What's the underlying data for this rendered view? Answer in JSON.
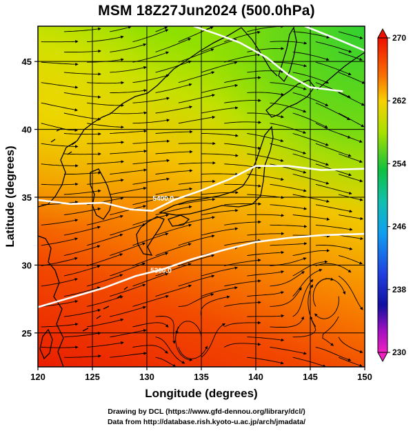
{
  "title": "MSM 18Z27Jun2024 (500.0hPa)",
  "credits": {
    "line1": "Drawing by DCL (https://www.gfd-dennou.org/library/dcl/)",
    "line2": "Data from http://database.rish.kyoto-u.ac.jp/arch/jmadata/"
  },
  "map": {
    "lon_range": [
      120,
      150
    ],
    "lat_range": [
      22.5,
      47.6
    ],
    "xlabel": "Longitude (degrees)",
    "ylabel": "Latitude  (degrees)",
    "x_ticks": [
      120,
      125,
      130,
      135,
      140,
      145,
      150
    ],
    "y_ticks": [
      25,
      30,
      35,
      40,
      45
    ],
    "x_tick_labels": [
      "120",
      "125",
      "130",
      "135",
      "140",
      "145",
      "150"
    ],
    "y_tick_labels": [
      "25",
      "30",
      "35",
      "40",
      "45"
    ],
    "grid": true
  },
  "colorbar": {
    "min": 230,
    "max": 270,
    "tick_labels": [
      "270",
      "262",
      "254",
      "246",
      "238",
      "230"
    ],
    "tick_values": [
      270,
      262,
      254,
      246,
      238,
      230
    ]
  },
  "contours": [
    {
      "label": "5400.0",
      "points": [
        [
          120,
          34.8
        ],
        [
          123,
          34.5
        ],
        [
          126,
          34.6
        ],
        [
          128.5,
          34.1
        ],
        [
          130.5,
          34.0
        ],
        [
          132.5,
          34.8
        ],
        [
          135,
          35.5
        ],
        [
          137.5,
          36.3
        ],
        [
          140,
          37.3
        ],
        [
          143,
          37.3
        ],
        [
          146,
          37.0
        ],
        [
          150,
          37.1
        ]
      ],
      "label_at": [
        131.5,
        34.9
      ]
    },
    {
      "label": "5300.0",
      "points": [
        [
          120,
          26.9
        ],
        [
          123,
          27.6
        ],
        [
          126,
          28.3
        ],
        [
          129,
          29.2
        ],
        [
          131.5,
          29.7
        ],
        [
          134,
          30.4
        ],
        [
          137,
          31.1
        ],
        [
          140,
          31.7
        ],
        [
          143,
          32.0
        ],
        [
          146,
          32.2
        ],
        [
          150,
          32.3
        ]
      ],
      "label_at": [
        131.3,
        29.6
      ]
    },
    {
      "label": "",
      "points": [
        [
          134.3,
          47.6
        ],
        [
          136.5,
          47.0
        ],
        [
          138.5,
          46.4
        ],
        [
          141,
          45.3
        ],
        [
          143,
          44.0
        ],
        [
          145,
          43.1
        ],
        [
          148,
          42.8
        ]
      ],
      "label_at": null
    },
    {
      "label": "",
      "points": [
        [
          144.5,
          47.6
        ],
        [
          147,
          46.8
        ],
        [
          150,
          45.8
        ]
      ],
      "label_at": null
    }
  ]
}
